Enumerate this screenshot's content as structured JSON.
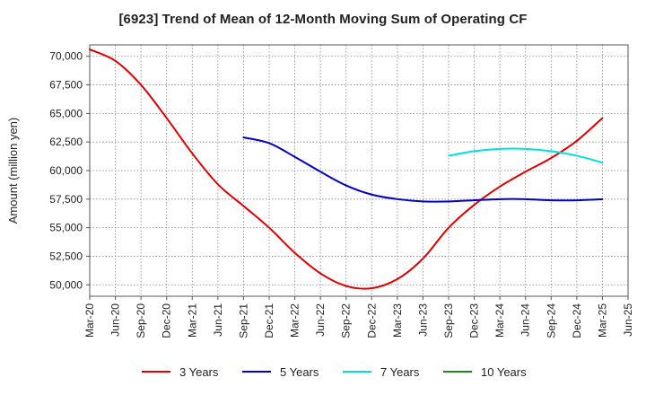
{
  "chart_data": {
    "type": "line",
    "title": "[6923]  Trend of Mean of 12-Month Moving Sum of Operating CF",
    "xlabel": "",
    "ylabel": "Amount (million yen)",
    "ylim": [
      49000,
      71000
    ],
    "y_ticks": [
      50000,
      52500,
      55000,
      57500,
      60000,
      62500,
      65000,
      67500,
      70000
    ],
    "y_tick_labels": [
      "50,000",
      "52,500",
      "55,000",
      "57,500",
      "60,000",
      "62,500",
      "65,000",
      "67,500",
      "70,000"
    ],
    "x_tick_labels": [
      "Mar-20",
      "Jun-20",
      "Sep-20",
      "Dec-20",
      "Mar-21",
      "Jun-21",
      "Sep-21",
      "Dec-21",
      "Mar-22",
      "Jun-22",
      "Sep-22",
      "Dec-22",
      "Mar-23",
      "Jun-23",
      "Sep-23",
      "Dec-23",
      "Mar-24",
      "Jun-24",
      "Sep-24",
      "Dec-24",
      "Mar-25",
      "Jun-25"
    ],
    "grid": true,
    "legend_position": "bottom",
    "series": [
      {
        "name": "3 Years",
        "color": "#e00000",
        "start_index": 0,
        "values": [
          70600,
          69600,
          67500,
          64600,
          61500,
          58800,
          56900,
          55000,
          52800,
          51000,
          49900,
          49700,
          50500,
          52300,
          55000,
          57000,
          58600,
          59900,
          61100,
          62600,
          64600
        ]
      },
      {
        "name": "5 Years",
        "color": "#0000c8",
        "start_index": 6,
        "values": [
          62900,
          62400,
          61200,
          59900,
          58700,
          57900,
          57500,
          57300,
          57300,
          57400,
          57500,
          57500,
          57400,
          57400,
          57500
        ]
      },
      {
        "name": "7 Years",
        "color": "#00e0e0",
        "start_index": 14,
        "values": [
          61300,
          61700,
          61900,
          61900,
          61700,
          61300,
          60700
        ]
      },
      {
        "name": "10 Years",
        "color": "#1a8a1a",
        "start_index": 0,
        "values": []
      }
    ]
  }
}
